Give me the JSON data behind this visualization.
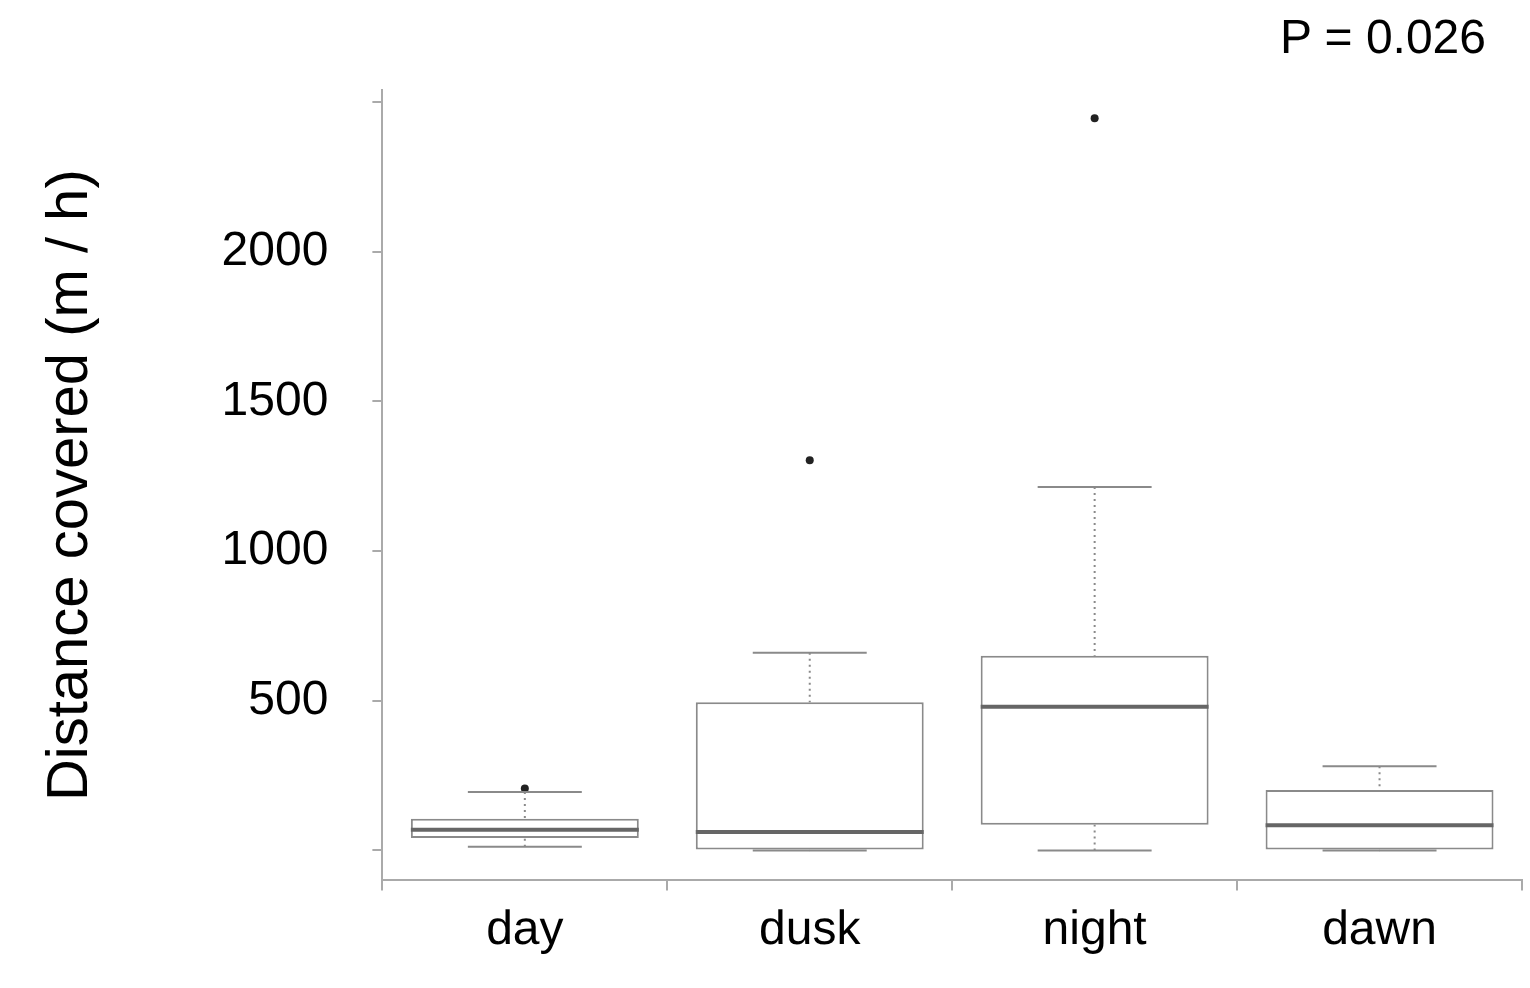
{
  "chart_data": {
    "type": "box",
    "ylabel": "Distance covered (m / h)",
    "categories": [
      "day",
      "dusk",
      "night",
      "dawn"
    ],
    "boxes": [
      {
        "low": 12,
        "q1": 42,
        "median": 69,
        "q3": 106,
        "high": 195,
        "outliers": [
          207
        ]
      },
      {
        "low": 0,
        "q1": 0,
        "median": 62,
        "q3": 495,
        "high": 660,
        "outliers": [
          1303
        ]
      },
      {
        "low": 0,
        "q1": 86,
        "median": 480,
        "q3": 650,
        "high": 1214,
        "outliers": [
          2446
        ]
      },
      {
        "low": 0,
        "q1": 0,
        "median": 84,
        "q3": 202,
        "high": 281
      }
    ],
    "ylim": [
      -100,
      2540
    ],
    "yticks": [
      {
        "value": 0,
        "label": null
      },
      500,
      1000,
      1500,
      2000,
      {
        "value": 2500,
        "label": null
      }
    ],
    "grid": false,
    "legend": false,
    "annotations": [
      "P = 0.026"
    ]
  }
}
